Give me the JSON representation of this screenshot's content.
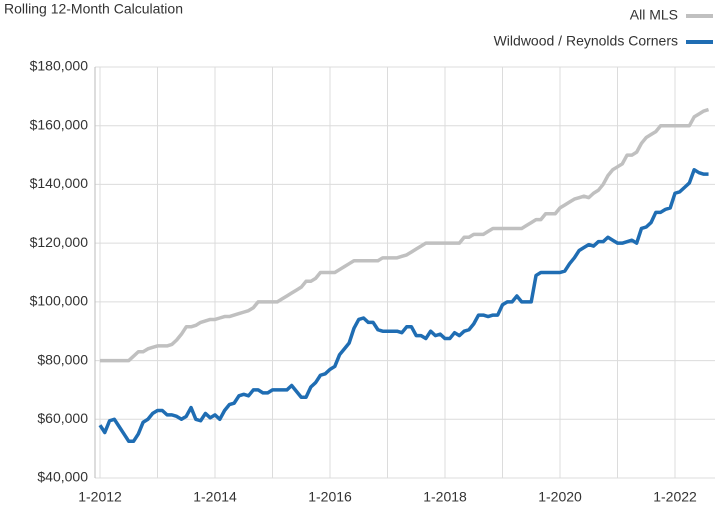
{
  "chart_data": {
    "type": "line",
    "title": "Rolling 12-Month Calculation",
    "categories": [
      "1-2012",
      null,
      null,
      null,
      null,
      null,
      null,
      null,
      null,
      null,
      null,
      null,
      null,
      null,
      null,
      null,
      null,
      null,
      null,
      null,
      null,
      null,
      null,
      null,
      "1-2014",
      null,
      null,
      null,
      null,
      null,
      null,
      null,
      null,
      null,
      null,
      null,
      null,
      null,
      null,
      null,
      null,
      null,
      null,
      null,
      null,
      null,
      null,
      null,
      "1-2016",
      null,
      null,
      null,
      null,
      null,
      null,
      null,
      null,
      null,
      null,
      null,
      null,
      null,
      null,
      null,
      null,
      null,
      null,
      null,
      null,
      null,
      null,
      null,
      "1-2018",
      null,
      null,
      null,
      null,
      null,
      null,
      null,
      null,
      null,
      null,
      null,
      null,
      null,
      null,
      null,
      null,
      null,
      null,
      null,
      null,
      null,
      null,
      null,
      "1-2020",
      null,
      null,
      null,
      null,
      null,
      null,
      null,
      null,
      null,
      null,
      null,
      null,
      null,
      null,
      null,
      null,
      null,
      null,
      null,
      null,
      null,
      null,
      null,
      "1-2022",
      null,
      null,
      null,
      null,
      null,
      null,
      null
    ],
    "series": [
      {
        "name": "All MLS",
        "color": "#c0c0c0",
        "values": [
          80000,
          80000,
          80000,
          80000,
          80000,
          80000,
          80000,
          81500,
          83000,
          83000,
          84000,
          84500,
          85000,
          85000,
          85000,
          85500,
          87000,
          89000,
          91500,
          91500,
          92000,
          93000,
          93500,
          94000,
          94000,
          94500,
          95000,
          95000,
          95500,
          96000,
          96500,
          97000,
          98000,
          100000,
          100000,
          100000,
          100000,
          100000,
          101000,
          102000,
          103000,
          104000,
          105000,
          107000,
          107000,
          108000,
          110000,
          110000,
          110000,
          110000,
          111000,
          112000,
          113000,
          114000,
          114000,
          114000,
          114000,
          114000,
          114000,
          115000,
          115000,
          115000,
          115000,
          115500,
          116000,
          117000,
          118000,
          119000,
          120000,
          120000,
          120000,
          120000,
          120000,
          120000,
          120000,
          120000,
          122000,
          122000,
          123000,
          123000,
          123000,
          124000,
          125000,
          125000,
          125000,
          125000,
          125000,
          125000,
          125000,
          126000,
          127000,
          128000,
          128000,
          130000,
          130000,
          130000,
          132000,
          133000,
          134000,
          135000,
          135500,
          136000,
          135500,
          137000,
          138000,
          140000,
          143000,
          145000,
          146000,
          147000,
          150000,
          150000,
          151000,
          154000,
          156000,
          157000,
          158000,
          160000,
          160000,
          160000,
          160000,
          160000,
          160000,
          160000,
          163000,
          164000,
          165000,
          165500
        ]
      },
      {
        "name": "Wildwood / Reynolds Corners",
        "color": "#1f6db3",
        "values": [
          58000,
          55500,
          59500,
          60000,
          57500,
          55000,
          52500,
          52500,
          55000,
          59000,
          60000,
          62000,
          63000,
          63000,
          61500,
          61500,
          61000,
          60000,
          61000,
          64000,
          60000,
          59500,
          62000,
          60500,
          61500,
          60000,
          63000,
          65000,
          65500,
          68000,
          68500,
          68000,
          70000,
          70000,
          69000,
          69000,
          70000,
          70000,
          70000,
          70000,
          71500,
          69500,
          67500,
          67500,
          71000,
          72500,
          75000,
          75500,
          77000,
          78000,
          82000,
          84000,
          86000,
          91000,
          94000,
          94500,
          93000,
          93000,
          90500,
          90000,
          90000,
          90000,
          90000,
          89500,
          91500,
          91500,
          88500,
          88500,
          87500,
          90000,
          88500,
          89000,
          87500,
          87500,
          89500,
          88500,
          90000,
          90500,
          92500,
          95500,
          95500,
          95000,
          95500,
          95500,
          99000,
          100000,
          100000,
          102000,
          100000,
          100000,
          100000,
          109000,
          110000,
          110000,
          110000,
          110000,
          110000,
          110500,
          113000,
          115000,
          117500,
          118500,
          119500,
          119000,
          120500,
          120500,
          122000,
          121000,
          120000,
          120000,
          120500,
          121000,
          120000,
          125000,
          125500,
          127000,
          130500,
          130500,
          131500,
          132000,
          137000,
          137500,
          139000,
          140500,
          145000,
          144000,
          143500,
          143500
        ]
      }
    ],
    "ylim": [
      40000,
      180000
    ],
    "yticks": [
      {
        "value": 40000,
        "label": "$40,000"
      },
      {
        "value": 60000,
        "label": "$60,000"
      },
      {
        "value": 80000,
        "label": "$80,000"
      },
      {
        "value": 100000,
        "label": "$100,000"
      },
      {
        "value": 120000,
        "label": "$120,000"
      },
      {
        "value": 140000,
        "label": "$140,000"
      },
      {
        "value": 160000,
        "label": "$160,000"
      },
      {
        "value": 180000,
        "label": "$180,000"
      }
    ],
    "grid": true,
    "legend": "top-right"
  }
}
